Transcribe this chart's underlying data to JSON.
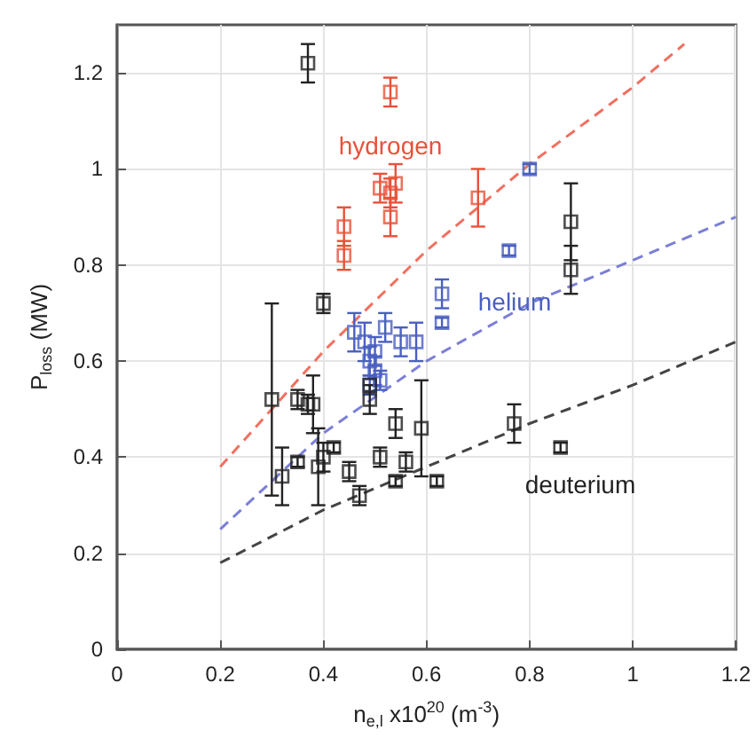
{
  "chart_data": {
    "type": "scatter",
    "xlabel": "n$_{e,l}$ x10$^{20}$ (m$^{-3}$)",
    "ylabel": "P$_{loss}$ (MW)",
    "xlim": [
      0,
      1.2
    ],
    "xticks": [
      0,
      0.2,
      0.4,
      0.6,
      0.8,
      1,
      1.2
    ],
    "ylim": [
      0,
      1.3
    ],
    "yticks": [
      0,
      0.2,
      0.4,
      0.6,
      0.8,
      1,
      1.2
    ],
    "grid": true,
    "marker": "square",
    "series": [
      {
        "name": "hydrogen",
        "color": "#e8513a",
        "x": [
          0.53,
          0.44,
          0.44,
          0.51,
          0.54,
          0.53,
          0.7,
          0.53
        ],
        "values": [
          1.16,
          0.88,
          0.82,
          0.96,
          0.97,
          0.9,
          0.94,
          0.95
        ],
        "errors": [
          0.03,
          0.04,
          0.03,
          0.03,
          0.04,
          0.04,
          0.06,
          0.03
        ]
      },
      {
        "name": "helium",
        "color": "#4a5fc1",
        "x": [
          0.8,
          0.76,
          0.63,
          0.63,
          0.46,
          0.48,
          0.5,
          0.52,
          0.55,
          0.58,
          0.49,
          0.5,
          0.51,
          0.49
        ],
        "values": [
          1.0,
          0.83,
          0.74,
          0.68,
          0.66,
          0.64,
          0.62,
          0.67,
          0.64,
          0.64,
          0.6,
          0.58,
          0.56,
          0.55
        ],
        "errors": [
          0.01,
          0.01,
          0.03,
          0.01,
          0.04,
          0.04,
          0.03,
          0.03,
          0.03,
          0.04,
          0.03,
          0.03,
          0.02,
          0.02
        ]
      },
      {
        "name": "deuterium",
        "color": "#222222",
        "x": [
          0.37,
          0.88,
          0.88,
          0.77,
          0.86,
          0.3,
          0.35,
          0.37,
          0.38,
          0.4,
          0.49,
          0.49,
          0.32,
          0.35,
          0.39,
          0.4,
          0.42,
          0.45,
          0.47,
          0.51,
          0.54,
          0.56,
          0.54,
          0.59,
          0.62
        ],
        "values": [
          1.22,
          0.89,
          0.79,
          0.47,
          0.42,
          0.52,
          0.52,
          0.51,
          0.51,
          0.72,
          0.52,
          0.55,
          0.36,
          0.39,
          0.38,
          0.4,
          0.42,
          0.37,
          0.32,
          0.4,
          0.35,
          0.39,
          0.47,
          0.46,
          0.35
        ],
        "errors": [
          0.04,
          0.08,
          0.05,
          0.04,
          0.01,
          0.2,
          0.02,
          0.02,
          0.06,
          0.02,
          0.03,
          null,
          0.06,
          0.01,
          0.08,
          0.03,
          0.01,
          0.02,
          0.02,
          0.02,
          0.01,
          0.02,
          0.03,
          0.1,
          0.01
        ]
      },
      {
        "type": "line",
        "color": "#f07060",
        "line_style": "dashed",
        "marker": "none",
        "x": [
          0.2,
          0.4,
          0.6,
          0.8,
          1.0,
          1.1
        ],
        "values": [
          0.38,
          0.62,
          0.83,
          1.01,
          1.17,
          1.26
        ]
      },
      {
        "type": "line",
        "color": "#7b7fd6",
        "line_style": "dashed",
        "marker": "none",
        "x": [
          0.2,
          0.4,
          0.6,
          0.8,
          1.0,
          1.2
        ],
        "values": [
          0.25,
          0.45,
          0.6,
          0.72,
          0.81,
          0.9
        ]
      },
      {
        "type": "line",
        "color": "#444444",
        "line_style": "dashed",
        "marker": "none",
        "x": [
          0.2,
          0.4,
          0.6,
          0.8,
          1.0,
          1.2
        ],
        "values": [
          0.18,
          0.29,
          0.38,
          0.47,
          0.55,
          0.64
        ]
      }
    ]
  }
}
